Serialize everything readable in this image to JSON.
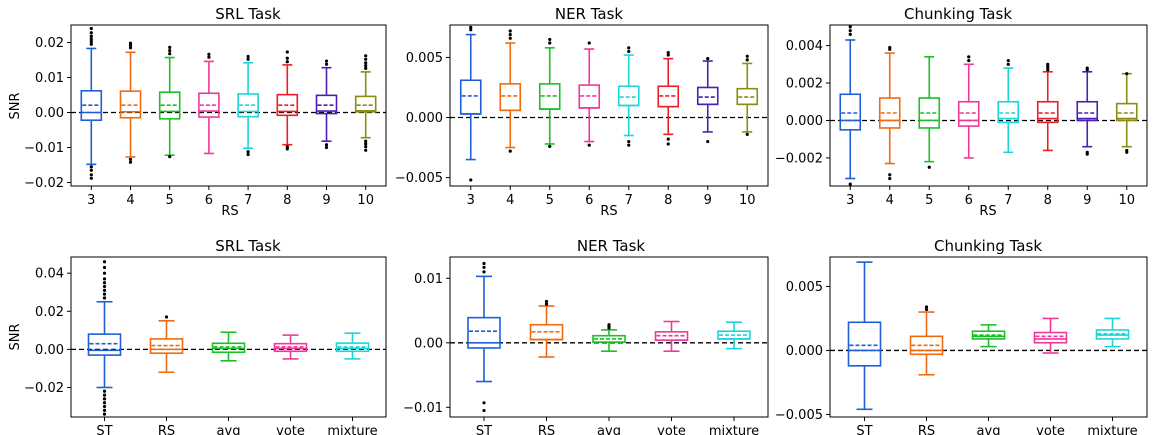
{
  "chart_data": [
    {
      "type": "box",
      "title": "SRL Task",
      "xlabel": "RS",
      "ylabel": "SNR",
      "ylim": [
        -0.021,
        0.025
      ],
      "yticks": [
        -0.02,
        -0.01,
        0.0,
        0.01,
        0.02
      ],
      "ytick_labels": [
        "−0.02",
        "−0.01",
        "0.00",
        "0.01",
        "0.02"
      ],
      "reference_line": 0,
      "categories": [
        "3",
        "4",
        "5",
        "6",
        "7",
        "8",
        "9",
        "10"
      ],
      "boxes": [
        {
          "whislo": -0.0148,
          "q1": -0.0022,
          "med": 0.0,
          "mean": 0.0021,
          "q3": 0.0062,
          "whishi": 0.0183,
          "fliers": [
            0.0195,
            0.0203,
            0.021,
            0.0218,
            0.0228,
            0.024,
            -0.0155,
            -0.0165,
            -0.0178,
            -0.0188
          ]
        },
        {
          "whislo": -0.0127,
          "q1": -0.0015,
          "med": 0.0002,
          "mean": 0.0021,
          "q3": 0.0061,
          "whishi": 0.0172,
          "fliers": [
            0.0185,
            0.0192,
            0.0198,
            -0.0134,
            -0.0142
          ]
        },
        {
          "whislo": -0.0122,
          "q1": -0.0018,
          "med": 0.0003,
          "mean": 0.0021,
          "q3": 0.0058,
          "whishi": 0.0157,
          "fliers": [
            0.0168,
            0.0177,
            0.0186,
            -0.0126
          ]
        },
        {
          "whislo": -0.0117,
          "q1": -0.0013,
          "med": 0.0004,
          "mean": 0.0021,
          "q3": 0.0055,
          "whishi": 0.0146,
          "fliers": [
            0.0158,
            0.0166
          ]
        },
        {
          "whislo": -0.0102,
          "q1": -0.0012,
          "med": 0.0003,
          "mean": 0.0021,
          "q3": 0.0053,
          "whishi": 0.0142,
          "fliers": [
            0.0152,
            0.016,
            -0.0112,
            -0.012
          ]
        },
        {
          "whislo": -0.0092,
          "q1": -0.0008,
          "med": 0.0003,
          "mean": 0.0021,
          "q3": 0.0051,
          "whishi": 0.0136,
          "fliers": [
            0.0145,
            0.0155,
            0.0173,
            -0.0098,
            -0.0104
          ]
        },
        {
          "whislo": -0.0082,
          "q1": -0.0003,
          "med": 0.0004,
          "mean": 0.0021,
          "q3": 0.0049,
          "whishi": 0.0128,
          "fliers": [
            0.0138,
            0.0147,
            -0.0092,
            -0.01
          ]
        },
        {
          "whislo": -0.0072,
          "q1": 0.0002,
          "med": 0.0005,
          "mean": 0.0021,
          "q3": 0.0046,
          "whishi": 0.0116,
          "fliers": [
            0.0126,
            0.0134,
            0.0142,
            0.0152,
            0.0162,
            -0.0082,
            -0.009,
            -0.0098,
            -0.0108
          ]
        }
      ]
    },
    {
      "type": "box",
      "title": "NER Task",
      "xlabel": "RS",
      "ylabel": "",
      "ylim": [
        -0.0057,
        0.0077
      ],
      "yticks": [
        -0.005,
        0.0,
        0.005
      ],
      "ytick_labels": [
        "−0.005",
        "0.000",
        "0.005"
      ],
      "reference_line": 0,
      "categories": [
        "3",
        "4",
        "5",
        "6",
        "7",
        "8",
        "9",
        "10"
      ],
      "boxes": [
        {
          "whislo": -0.0035,
          "q1": 0.0003,
          "med": 0.0003,
          "mean": 0.0018,
          "q3": 0.0031,
          "whishi": 0.0069,
          "fliers": [
            0.0073,
            0.0075,
            -0.0052
          ]
        },
        {
          "whislo": -0.0025,
          "q1": 0.0006,
          "med": 0.0006,
          "mean": 0.0018,
          "q3": 0.0028,
          "whishi": 0.0062,
          "fliers": [
            0.0066,
            0.0069,
            0.0072,
            -0.0028
          ]
        },
        {
          "whislo": -0.0022,
          "q1": 0.0007,
          "med": 0.0007,
          "mean": 0.0018,
          "q3": 0.0028,
          "whishi": 0.0058,
          "fliers": [
            0.0062,
            0.0065,
            -0.0024
          ]
        },
        {
          "whislo": -0.002,
          "q1": 0.0008,
          "med": 0.0008,
          "mean": 0.0018,
          "q3": 0.0027,
          "whishi": 0.0057,
          "fliers": [
            0.0062,
            -0.0023
          ]
        },
        {
          "whislo": -0.0015,
          "q1": 0.001,
          "med": 0.001,
          "mean": 0.0017,
          "q3": 0.0026,
          "whishi": 0.0052,
          "fliers": [
            0.0055,
            0.0058,
            -0.002,
            -0.0023
          ]
        },
        {
          "whislo": -0.0014,
          "q1": 0.0009,
          "med": 0.0009,
          "mean": 0.0018,
          "q3": 0.0026,
          "whishi": 0.0049,
          "fliers": [
            0.0052,
            0.0054,
            -0.0018,
            -0.0022
          ]
        },
        {
          "whislo": -0.0012,
          "q1": 0.0011,
          "med": 0.0011,
          "mean": 0.0017,
          "q3": 0.0025,
          "whishi": 0.0047,
          "fliers": [
            0.0049,
            -0.002
          ]
        },
        {
          "whislo": -0.0012,
          "q1": 0.0011,
          "med": 0.0011,
          "mean": 0.0017,
          "q3": 0.0024,
          "whishi": 0.0045,
          "fliers": [
            0.0048,
            0.0051,
            -0.0014
          ]
        }
      ]
    },
    {
      "type": "box",
      "title": "Chunking Task",
      "xlabel": "RS",
      "ylabel": "",
      "ylim": [
        -0.0035,
        0.0051
      ],
      "yticks": [
        -0.002,
        0.0,
        0.002,
        0.004
      ],
      "ytick_labels": [
        "−0.002",
        "0.000",
        "0.002",
        "0.004"
      ],
      "reference_line": 0,
      "categories": [
        "3",
        "4",
        "5",
        "6",
        "7",
        "8",
        "9",
        "10"
      ],
      "boxes": [
        {
          "whislo": -0.0031,
          "q1": -0.0005,
          "med": 0.0,
          "mean": 0.0004,
          "q3": 0.0014,
          "whishi": 0.0043,
          "fliers": [
            0.0046,
            0.0048,
            0.005,
            -0.0034
          ]
        },
        {
          "whislo": -0.0023,
          "q1": -0.0004,
          "med": 0.0,
          "mean": 0.0004,
          "q3": 0.0012,
          "whishi": 0.0036,
          "fliers": [
            0.0038,
            0.0039,
            -0.0029,
            -0.0031
          ]
        },
        {
          "whislo": -0.0022,
          "q1": -0.0004,
          "med": 0.0,
          "mean": 0.0004,
          "q3": 0.0012,
          "whishi": 0.0034,
          "fliers": [
            -0.0025
          ]
        },
        {
          "whislo": -0.002,
          "q1": -0.0003,
          "med": 0.0,
          "mean": 0.0004,
          "q3": 0.001,
          "whishi": 0.003,
          "fliers": [
            0.0032,
            0.0034
          ]
        },
        {
          "whislo": -0.0017,
          "q1": -0.0001,
          "med": 0.0001,
          "mean": 0.0004,
          "q3": 0.001,
          "whishi": 0.0028,
          "fliers": [
            0.003,
            0.0032
          ]
        },
        {
          "whislo": -0.0016,
          "q1": -0.0001,
          "med": 0.0001,
          "mean": 0.0004,
          "q3": 0.001,
          "whishi": 0.0026,
          "fliers": [
            0.0027,
            0.0028,
            0.0029,
            0.003
          ]
        },
        {
          "whislo": -0.0014,
          "q1": 0.0,
          "med": 0.0001,
          "mean": 0.0004,
          "q3": 0.001,
          "whishi": 0.0026,
          "fliers": [
            0.0027,
            0.0028,
            -0.0017,
            -0.0018
          ]
        },
        {
          "whislo": -0.0014,
          "q1": 0.0,
          "med": 0.0001,
          "mean": 0.0004,
          "q3": 0.0009,
          "whishi": 0.0025,
          "fliers": [
            0.0025,
            -0.0016,
            -0.0017
          ]
        }
      ]
    },
    {
      "type": "box",
      "title": "SRL Task",
      "xlabel": "",
      "ylabel": "SNR",
      "ylim": [
        -0.0355,
        0.0485
      ],
      "yticks": [
        -0.02,
        0.0,
        0.02,
        0.04
      ],
      "ytick_labels": [
        "−0.02",
        "0.00",
        "0.02",
        "0.04"
      ],
      "reference_line": 0,
      "categories": [
        "ST",
        "RS",
        "avg",
        "vote",
        "mixture"
      ],
      "boxes": [
        {
          "whislo": -0.02,
          "q1": -0.003,
          "med": -0.0005,
          "mean": 0.003,
          "q3": 0.008,
          "whishi": 0.025,
          "fliers": [
            0.027,
            0.029,
            0.031,
            0.033,
            0.035,
            0.037,
            0.04,
            0.043,
            0.046,
            -0.022,
            -0.024,
            -0.026,
            -0.028,
            -0.03,
            -0.032,
            -0.034
          ]
        },
        {
          "whislo": -0.012,
          "q1": -0.002,
          "med": 0.0,
          "mean": 0.002,
          "q3": 0.0055,
          "whishi": 0.015,
          "fliers": [
            0.017
          ]
        },
        {
          "whislo": -0.006,
          "q1": -0.0015,
          "med": 0.0005,
          "mean": 0.0013,
          "q3": 0.0032,
          "whishi": 0.009,
          "fliers": []
        },
        {
          "whislo": -0.005,
          "q1": -0.001,
          "med": 0.0005,
          "mean": 0.0013,
          "q3": 0.003,
          "whishi": 0.0075,
          "fliers": []
        },
        {
          "whislo": -0.005,
          "q1": -0.001,
          "med": 0.0005,
          "mean": 0.0013,
          "q3": 0.0033,
          "whishi": 0.0085,
          "fliers": []
        }
      ]
    },
    {
      "type": "box",
      "title": "NER Task",
      "xlabel": "",
      "ylabel": "",
      "ylim": [
        -0.0115,
        0.0133
      ],
      "yticks": [
        -0.01,
        0.0,
        0.01
      ],
      "ytick_labels": [
        "−0.01",
        "0.00",
        "0.01"
      ],
      "reference_line": 0,
      "categories": [
        "ST",
        "RS",
        "avg",
        "vote",
        "mixture"
      ],
      "boxes": [
        {
          "whislo": -0.006,
          "q1": -0.0008,
          "med": 0.0,
          "mean": 0.0018,
          "q3": 0.0039,
          "whishi": 0.0103,
          "fliers": [
            0.011,
            0.0117,
            0.0123,
            -0.0093,
            -0.0105
          ]
        },
        {
          "whislo": -0.0022,
          "q1": 0.0005,
          "med": 0.0005,
          "mean": 0.0017,
          "q3": 0.0028,
          "whishi": 0.0057,
          "fliers": [
            0.006,
            0.0064
          ]
        },
        {
          "whislo": -0.0013,
          "q1": 0.0001,
          "med": 0.0001,
          "mean": 0.0006,
          "q3": 0.0011,
          "whishi": 0.002,
          "fliers": [
            0.0023,
            0.0026,
            0.0028
          ]
        },
        {
          "whislo": -0.0013,
          "q1": 0.0004,
          "med": 0.0004,
          "mean": 0.0011,
          "q3": 0.0017,
          "whishi": 0.0033,
          "fliers": []
        },
        {
          "whislo": -0.0009,
          "q1": 0.0006,
          "med": 0.0006,
          "mean": 0.0012,
          "q3": 0.0018,
          "whishi": 0.0032,
          "fliers": []
        }
      ]
    },
    {
      "type": "box",
      "title": "Chunking Task",
      "xlabel": "",
      "ylabel": "",
      "ylim": [
        -0.0052,
        0.0073
      ],
      "yticks": [
        -0.005,
        0.0,
        0.005
      ],
      "ytick_labels": [
        "−0.005",
        "0.000",
        "0.005"
      ],
      "reference_line": 0,
      "categories": [
        "ST",
        "RS",
        "avg",
        "vote",
        "mixture"
      ],
      "boxes": [
        {
          "whislo": -0.0046,
          "q1": -0.0012,
          "med": 0.0,
          "mean": 0.0004,
          "q3": 0.0022,
          "whishi": 0.0069,
          "fliers": []
        },
        {
          "whislo": -0.0019,
          "q1": -0.0003,
          "med": 0.0,
          "mean": 0.0004,
          "q3": 0.0011,
          "whishi": 0.003,
          "fliers": [
            0.0032,
            0.0034
          ]
        },
        {
          "whislo": 0.0003,
          "q1": 0.0009,
          "med": 0.0011,
          "mean": 0.0012,
          "q3": 0.0015,
          "whishi": 0.002,
          "fliers": []
        },
        {
          "whislo": -0.0002,
          "q1": 0.0006,
          "med": 0.0009,
          "mean": 0.0011,
          "q3": 0.0014,
          "whishi": 0.0025,
          "fliers": []
        },
        {
          "whislo": 0.0003,
          "q1": 0.0009,
          "med": 0.0012,
          "mean": 0.0013,
          "q3": 0.0016,
          "whishi": 0.0025,
          "fliers": []
        }
      ]
    }
  ],
  "palette": {
    "rs_series": [
      "#1f5fd6",
      "#f06a12",
      "#1cbf2a",
      "#f2379a",
      "#1ad6d6",
      "#ee1c25",
      "#4b1fb3",
      "#8b8c12"
    ],
    "method_series": [
      "#1f5fd6",
      "#f06a12",
      "#1cbf2a",
      "#f2379a",
      "#1ad6d6"
    ],
    "flier": "#000000",
    "reference_line": "#000000"
  }
}
